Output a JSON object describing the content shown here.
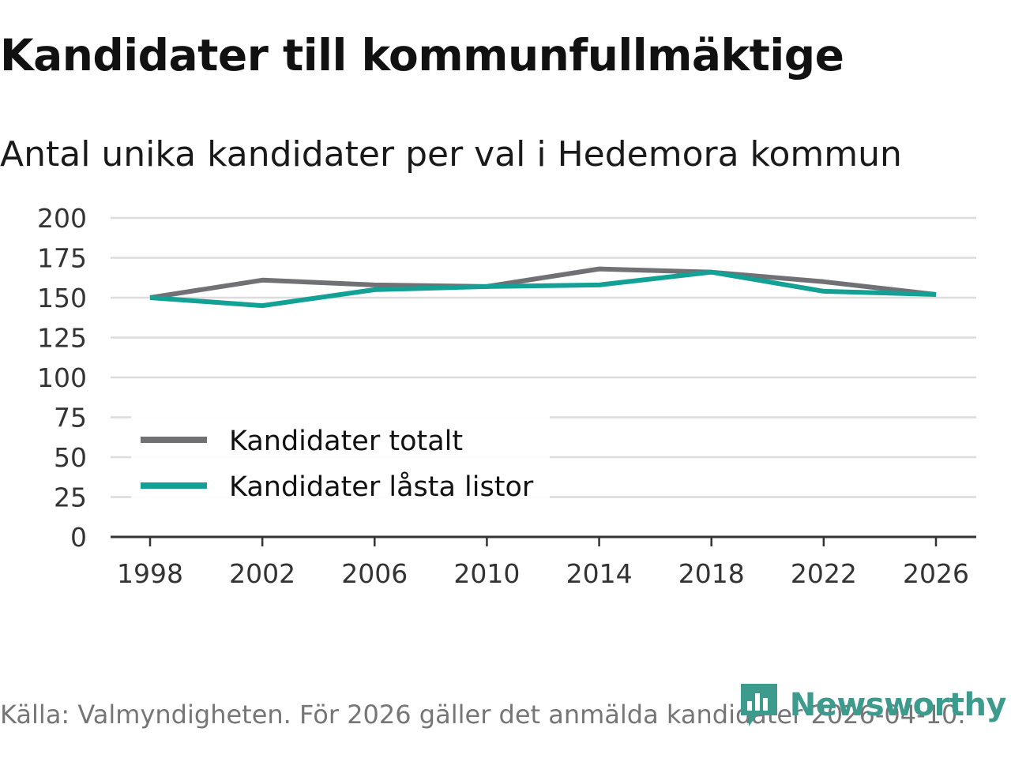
{
  "title": "Kandidater till kommunfullmäktige",
  "subtitle": "Antal unika kandidater per val i Hedemora kommun",
  "caption": "Källa: Valmyndigheten. För 2026 gäller det anmälda kandidater 2026-04-10.",
  "brand": {
    "name": "Newsworthy",
    "icon": "bar-chart-flag-icon",
    "color": "#3d9b8d"
  },
  "chart_data": {
    "type": "line",
    "title": "Kandidater till kommunfullmäktige",
    "subtitle": "Antal unika kandidater per val i Hedemora kommun",
    "xlabel": "",
    "ylabel": "",
    "x": [
      "1998",
      "2002",
      "2006",
      "2010",
      "2014",
      "2018",
      "2022",
      "2026"
    ],
    "ylim": [
      0,
      200
    ],
    "yticks": [
      0,
      25,
      50,
      75,
      100,
      125,
      150,
      175,
      200
    ],
    "grid": true,
    "legend_position": "bottom-left",
    "series": [
      {
        "name": "Kandidater totalt",
        "color": "#707075",
        "values": [
          150,
          161,
          158,
          157,
          168,
          166,
          160,
          152
        ]
      },
      {
        "name": "Kandidater låsta listor",
        "color": "#14a195",
        "values": [
          150,
          145,
          155,
          157,
          158,
          166,
          154,
          152
        ]
      }
    ]
  }
}
